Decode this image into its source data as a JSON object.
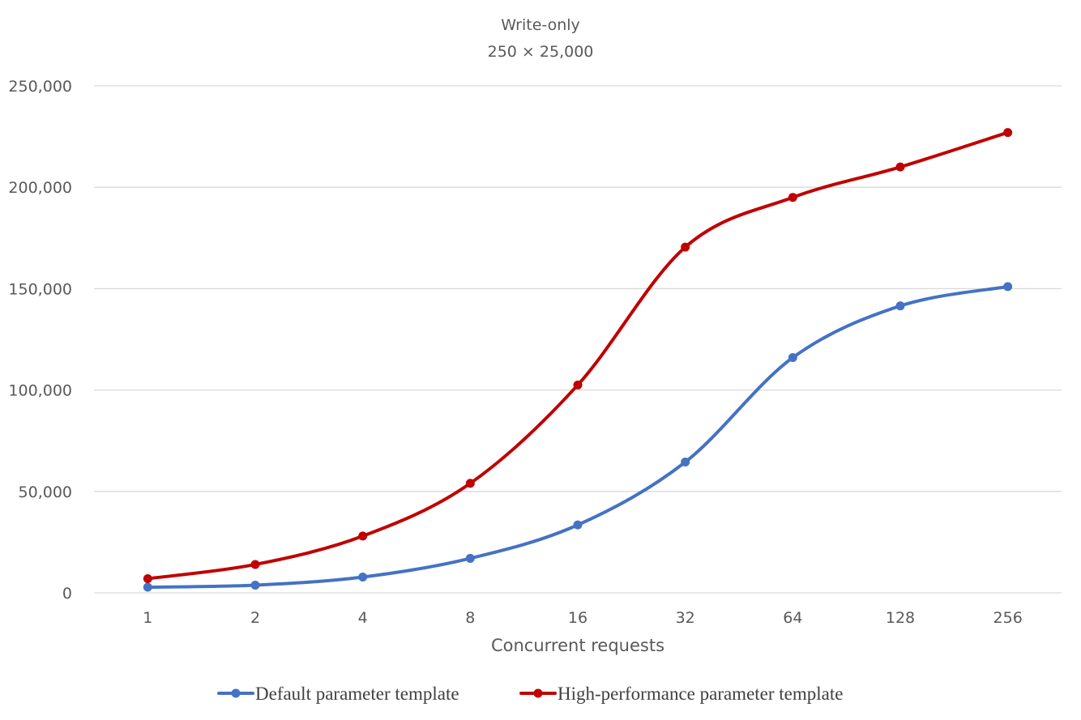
{
  "chart_data": {
    "type": "line",
    "title": "Write-only",
    "subtitle": "250 × 25,000",
    "xlabel": "Concurrent requests",
    "ylabel": "",
    "x": [
      "1",
      "2",
      "4",
      "8",
      "16",
      "32",
      "64",
      "128",
      "256"
    ],
    "ylim": [
      0,
      250000
    ],
    "yticks": [
      0,
      50000,
      100000,
      150000,
      200000,
      250000
    ],
    "ytick_labels": [
      "0",
      "50,000",
      "100,000",
      "150,000",
      "200,000",
      "250,000"
    ],
    "grid": true,
    "smooth": true,
    "legend_position": "bottom",
    "series": [
      {
        "name": "Default parameter template",
        "color": "#4472c4",
        "values": [
          2800,
          3800,
          7800,
          17000,
          33500,
          64500,
          116000,
          141500,
          151000
        ]
      },
      {
        "name": "High-performance parameter template",
        "color": "#c00000",
        "values": [
          7000,
          14000,
          28000,
          54000,
          102500,
          170500,
          195000,
          210000,
          227000
        ]
      }
    ]
  }
}
